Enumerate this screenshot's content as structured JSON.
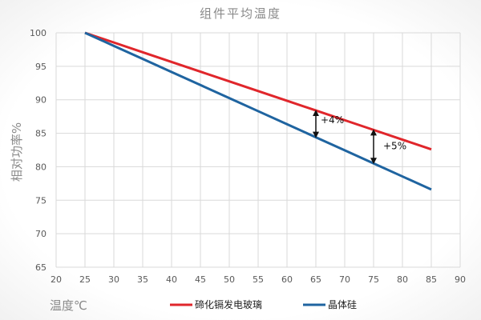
{
  "chart_data": {
    "type": "line",
    "title": "组件平均温度",
    "xlabel": "温度℃",
    "ylabel": "相对功率%",
    "xlim": [
      20,
      90
    ],
    "ylim": [
      65,
      100
    ],
    "x_ticks": [
      20,
      25,
      30,
      35,
      40,
      45,
      50,
      55,
      60,
      65,
      70,
      75,
      80,
      85,
      90
    ],
    "y_ticks": [
      65,
      70,
      75,
      80,
      85,
      90,
      95,
      100
    ],
    "grid": true,
    "legend_position": "bottom",
    "x": [
      25,
      30,
      35,
      40,
      45,
      50,
      55,
      60,
      65,
      70,
      75,
      80,
      85
    ],
    "series": [
      {
        "name": "碲化镉发电玻璃",
        "color": "#e0262b",
        "values": [
          100,
          98.55,
          97.1,
          95.65,
          94.2,
          92.75,
          91.3,
          89.85,
          88.4,
          86.95,
          85.5,
          84.05,
          82.6
        ]
      },
      {
        "name": "晶体硅",
        "color": "#1f64a0",
        "values": [
          100,
          98.05,
          96.1,
          94.15,
          92.2,
          90.25,
          88.3,
          86.35,
          84.4,
          82.45,
          80.5,
          78.55,
          76.6
        ]
      }
    ],
    "annotations": [
      {
        "x": 65,
        "from": 84.4,
        "to": 88.4,
        "text": "+4%"
      },
      {
        "x": 75,
        "from": 80.5,
        "to": 85.5,
        "text": "+5%"
      }
    ]
  }
}
